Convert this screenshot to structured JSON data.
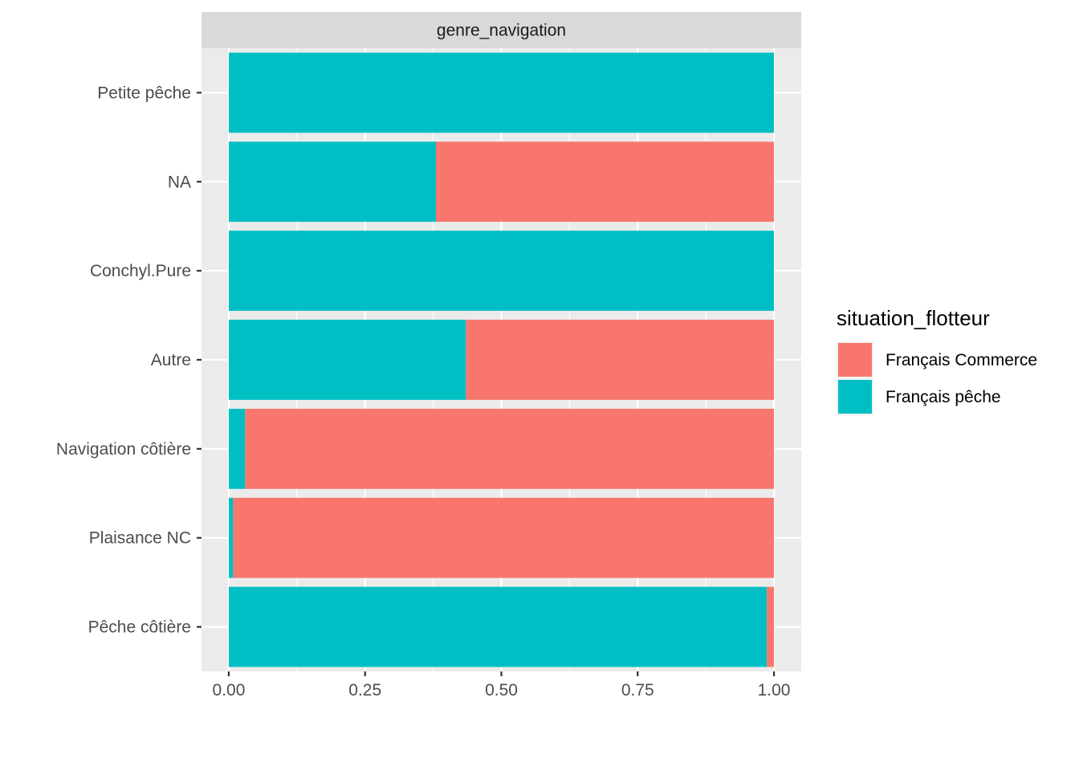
{
  "chart_data": {
    "type": "bar",
    "orientation": "horizontal",
    "stacked": "fill",
    "facet_label": "genre_navigation",
    "categories": [
      "Petite pêche",
      "NA",
      "Conchyl.Pure",
      "Autre",
      "Navigation côtière",
      "Plaisance NC",
      "Pêche côtière"
    ],
    "series": [
      {
        "name": "Français Commerce",
        "color": "#F8766D",
        "values": [
          0.0,
          0.62,
          0.0,
          0.565,
          0.97,
          0.992,
          0.013
        ]
      },
      {
        "name": "Français pêche",
        "color": "#00BFC4",
        "values": [
          1.0,
          0.38,
          1.0,
          0.435,
          0.03,
          0.008,
          0.987
        ]
      }
    ],
    "xlim": [
      -0.05,
      1.05
    ],
    "x_ticks": [
      "0.00",
      "0.25",
      "0.50",
      "0.75",
      "1.00"
    ],
    "x_tick_values": [
      0,
      0.25,
      0.5,
      0.75,
      1.0
    ],
    "xlabel": "",
    "ylabel": "",
    "legend": {
      "title": "situation_flotteur",
      "position": "right"
    },
    "grid": true,
    "panel_background": "#EBEBEB",
    "strip_background": "#D9D9D9"
  }
}
